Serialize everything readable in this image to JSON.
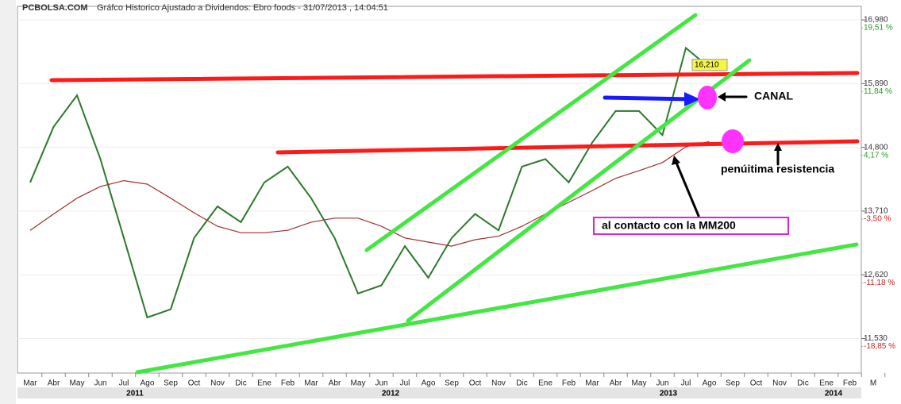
{
  "chart_data": {
    "type": "line",
    "site": "PCBOLSA.COM",
    "title": "Gráfco Historico Ajustado a Dividendos: Ebro foods - 31/07/2013 , 14:04:51",
    "categories": [
      "Mar",
      "Abr",
      "May",
      "Jun",
      "Jul",
      "Ago",
      "Sep",
      "Oct",
      "Nov",
      "Dic",
      "Ene",
      "Feb",
      "Mar",
      "Abr",
      "May",
      "Jun",
      "Jul",
      "Ago",
      "Sep",
      "Oct",
      "Nov",
      "Dic",
      "Ene",
      "Feb",
      "Mar",
      "Abr",
      "May",
      "Jun",
      "Jul",
      "Ago",
      "Sep",
      "Oct",
      "Nov",
      "Dic",
      "Ene",
      "Feb",
      "M"
    ],
    "years": [
      "2011",
      "2012",
      "2013",
      "2014"
    ],
    "series": [
      {
        "name": "Ebro foods",
        "color": "#2b7a2b",
        "values": [
          14200,
          15150,
          15690,
          14600,
          13250,
          11890,
          12030,
          13250,
          13790,
          13520,
          14200,
          14470,
          13930,
          13250,
          12300,
          12440,
          13110,
          12570,
          13250,
          13660,
          13380,
          14470,
          14600,
          14200,
          14880,
          15420,
          15420,
          15010,
          16500,
          16165,
          null,
          null,
          null,
          null,
          null,
          null,
          null
        ]
      },
      {
        "name": "MM200",
        "color": "#a0302a",
        "values": [
          13380,
          13660,
          13930,
          14130,
          14230,
          14170,
          13930,
          13680,
          13450,
          13340,
          13340,
          13380,
          13520,
          13590,
          13590,
          13450,
          13250,
          13180,
          13110,
          13220,
          13280,
          13450,
          13660,
          13860,
          14060,
          14270,
          14400,
          14540,
          14810,
          14900,
          null,
          null,
          null,
          null,
          null,
          null,
          null
        ]
      }
    ],
    "current_price": {
      "value": 16210,
      "label": "16,210"
    },
    "ylim": [
      10940,
      17211
    ],
    "yticks": [
      {
        "value": 16980,
        "label": "16,980"
      },
      {
        "value": 15890,
        "label": "15,890"
      },
      {
        "value": 14800,
        "label": "14,800"
      },
      {
        "value": 13710,
        "label": "13,710"
      },
      {
        "value": 12620,
        "label": "12,620"
      },
      {
        "value": 11530,
        "label": "11,530"
      }
    ],
    "y2lim": [
      -23.0,
      21.14
    ],
    "y2ticks": [
      {
        "value": 19.51,
        "label": "19,51 %"
      },
      {
        "value": 11.84,
        "label": "11,84 %"
      },
      {
        "value": 4.17,
        "label": "4,17 %"
      },
      {
        "value": -3.5,
        "label": "-3,50 %"
      },
      {
        "value": -11.18,
        "label": "-11,18 %"
      },
      {
        "value": -18.85,
        "label": "-18,85 %"
      }
    ],
    "annotations": [
      "CANAL",
      "penúitima resistencia",
      "al contacto con la MM200"
    ]
  }
}
